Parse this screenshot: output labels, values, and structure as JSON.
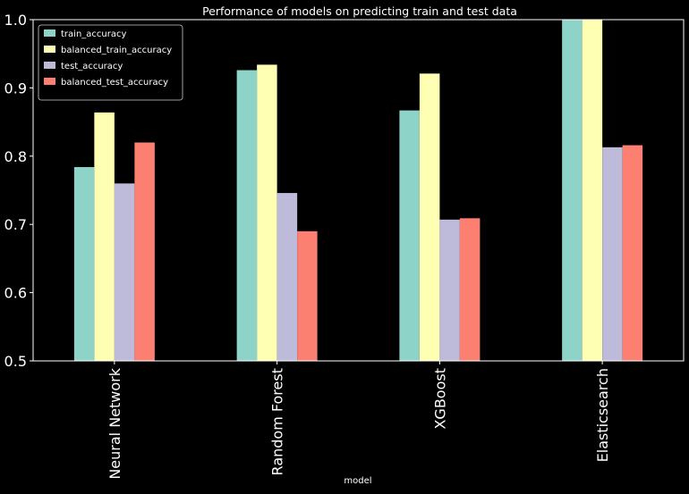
{
  "chart_data": {
    "type": "bar",
    "title": "Performance of models on predicting train and test data",
    "xlabel": "model",
    "ylabel": "",
    "ylim": [
      0.5,
      1.0
    ],
    "yticks": [
      0.5,
      0.6,
      0.7,
      0.8,
      0.9,
      1.0
    ],
    "ytick_labels": [
      "0.5",
      "0.6",
      "0.7",
      "0.8",
      "0.9",
      "1.0"
    ],
    "grid": false,
    "legend_position": "top-left",
    "categories": [
      "Neural Network",
      "Random Forest",
      "XGBoost",
      "Elasticsearch"
    ],
    "series": [
      {
        "name": "train_accuracy",
        "color": "#8dd3c7",
        "values": [
          0.784,
          0.926,
          0.867,
          1.0
        ]
      },
      {
        "name": "balanced_train_accuracy",
        "color": "#ffffb3",
        "values": [
          0.864,
          0.934,
          0.921,
          1.0
        ]
      },
      {
        "name": "test_accuracy",
        "color": "#bebada",
        "values": [
          0.76,
          0.746,
          0.707,
          0.813
        ]
      },
      {
        "name": "balanced_test_accuracy",
        "color": "#fb8072",
        "values": [
          0.82,
          0.69,
          0.709,
          0.816
        ]
      }
    ]
  },
  "colors": {
    "background": "#000000",
    "axes": "#ffffff",
    "text": "#ffffff"
  }
}
